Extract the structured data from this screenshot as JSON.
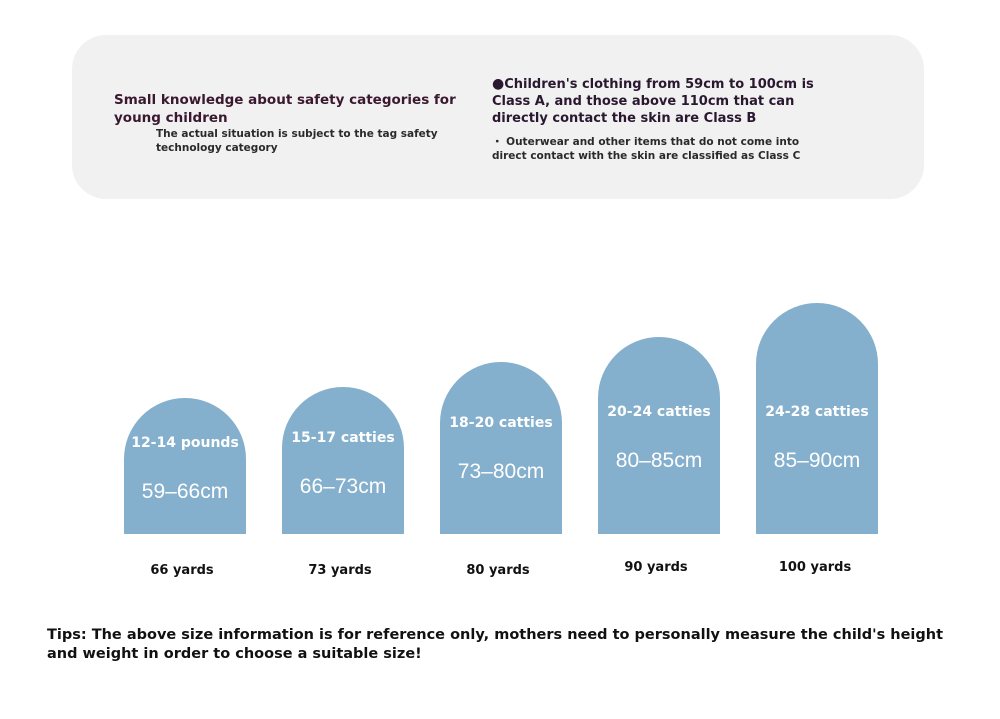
{
  "info": {
    "title": "Small knowledge about safety categories for young children",
    "subtitle": "The actual situation is subject to the tag safety technology category",
    "main_bullet": "●",
    "main_text": "Children's clothing from 59cm to 100cm is Class A, and those above 110cm that can directly contact the skin are Class B",
    "note": "・ Outerwear and other items that do not come into direct contact with the skin are classified as Class C"
  },
  "sizes": [
    {
      "weight": "12-14 pounds",
      "height": "59–66cm",
      "yard": "66 yards"
    },
    {
      "weight": "15-17 catties",
      "height": "66–73cm",
      "yard": "73 yards"
    },
    {
      "weight": "18-20 catties",
      "height": "73–80cm",
      "yard": "80 yards"
    },
    {
      "weight": "20-24 catties",
      "height": "80–85cm",
      "yard": "90 yards"
    },
    {
      "weight": "24-28 catties",
      "height": "85–90cm",
      "yard": "100 yards"
    }
  ],
  "tips": "Tips: The above size information is for reference only, mothers need to personally measure the child's height and weight in order to choose a suitable size!",
  "colors": {
    "arch": "#84b0cd",
    "card": "#f1f1f1",
    "title": "#3a1830"
  }
}
